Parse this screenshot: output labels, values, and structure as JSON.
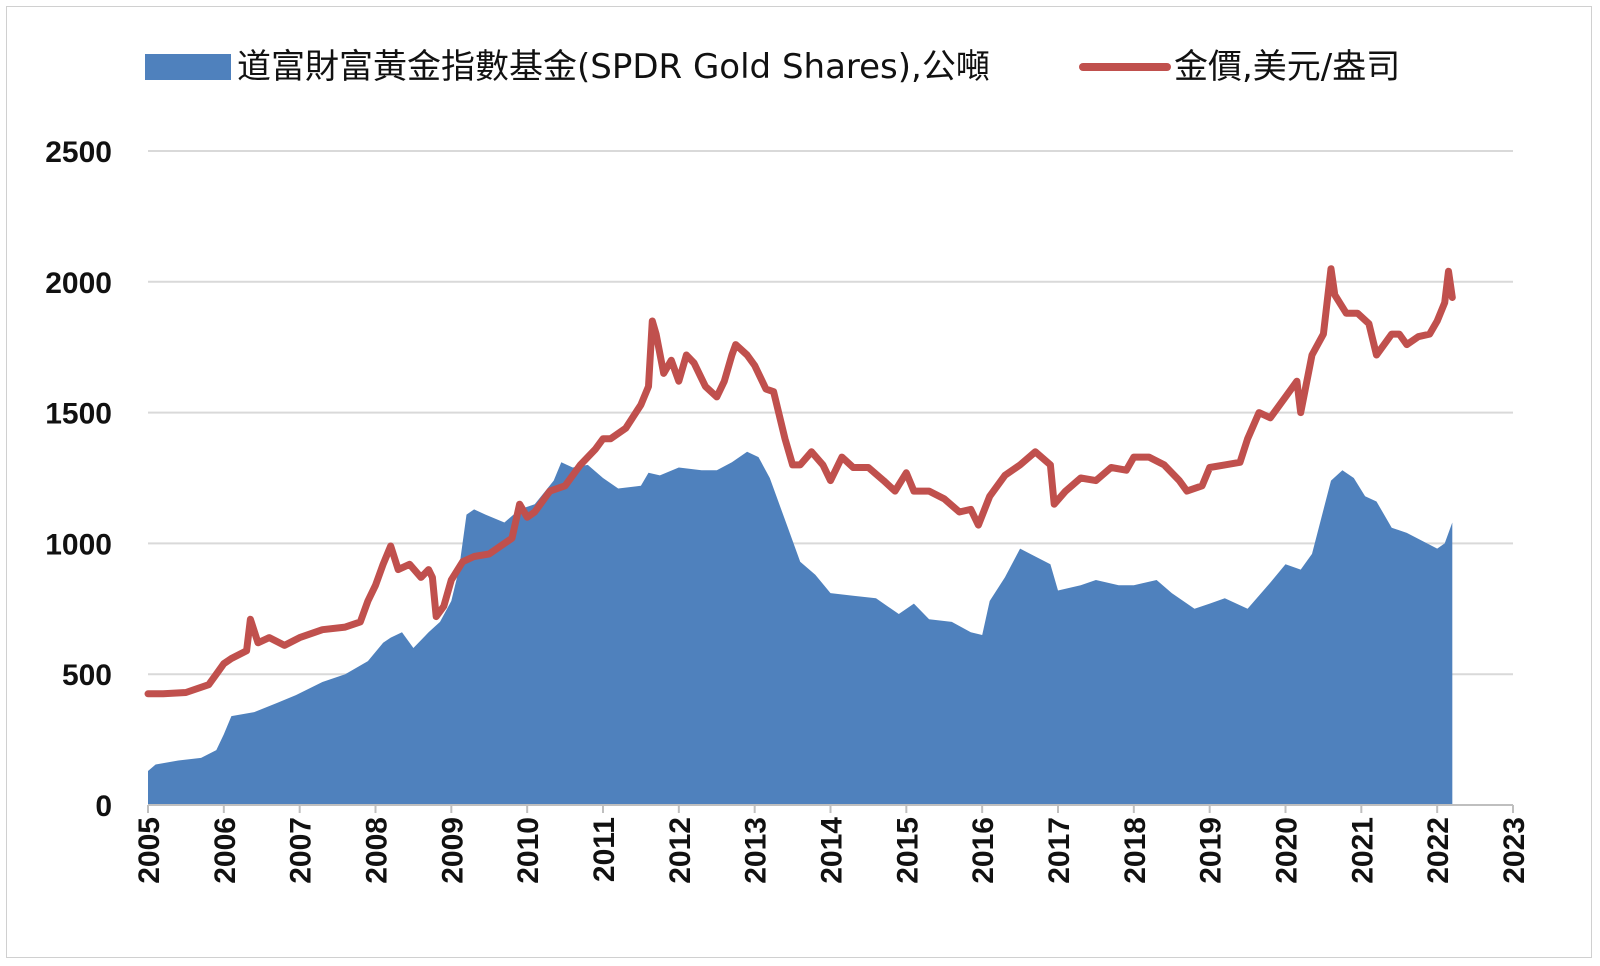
{
  "chart_data": {
    "type": "area",
    "title": "",
    "xlabel": "",
    "ylabel": "",
    "ylim": [
      0,
      2500
    ],
    "xlim": [
      2005,
      2023
    ],
    "yticks": [
      "0",
      "500",
      "1000",
      "1500",
      "2000",
      "2500"
    ],
    "xticks": [
      "2005",
      "2006",
      "2007",
      "2008",
      "2009",
      "2010",
      "2011",
      "2012",
      "2013",
      "2014",
      "2015",
      "2016",
      "2017",
      "2018",
      "2019",
      "2020",
      "2021",
      "2022",
      "2023"
    ],
    "grid": "horizontal",
    "legend_position": "top",
    "series": [
      {
        "name": "道富財富黃金指數基金(SPDR Gold Shares),公噸",
        "type": "area",
        "color": "#4f81bd",
        "x": [
          2005.0,
          2005.1,
          2005.4,
          2005.7,
          2005.9,
          2006.0,
          2006.1,
          2006.4,
          2006.7,
          2006.95,
          2007.3,
          2007.6,
          2007.9,
          2008.1,
          2008.2,
          2008.35,
          2008.5,
          2008.7,
          2008.85,
          2009.0,
          2009.1,
          2009.2,
          2009.3,
          2009.45,
          2009.7,
          2009.9,
          2010.1,
          2010.35,
          2010.45,
          2010.6,
          2010.8,
          2011.0,
          2011.2,
          2011.5,
          2011.6,
          2011.75,
          2012.0,
          2012.3,
          2012.5,
          2012.7,
          2012.9,
          2013.05,
          2013.2,
          2013.45,
          2013.6,
          2013.8,
          2014.0,
          2014.3,
          2014.6,
          2014.9,
          2015.1,
          2015.3,
          2015.6,
          2015.85,
          2016.0,
          2016.1,
          2016.3,
          2016.5,
          2016.7,
          2016.9,
          2017.0,
          2017.3,
          2017.5,
          2017.8,
          2018.0,
          2018.3,
          2018.5,
          2018.8,
          2019.0,
          2019.2,
          2019.5,
          2019.8,
          2020.0,
          2020.2,
          2020.35,
          2020.6,
          2020.75,
          2020.9,
          2021.05,
          2021.2,
          2021.4,
          2021.6,
          2021.8,
          2022.0,
          2022.1,
          2022.2
        ],
        "values": [
          130,
          155,
          170,
          180,
          210,
          270,
          340,
          355,
          390,
          420,
          470,
          500,
          550,
          620,
          640,
          660,
          600,
          660,
          700,
          780,
          900,
          1110,
          1130,
          1110,
          1080,
          1130,
          1150,
          1240,
          1310,
          1290,
          1300,
          1250,
          1210,
          1220,
          1270,
          1260,
          1290,
          1280,
          1280,
          1310,
          1350,
          1330,
          1250,
          1050,
          930,
          880,
          810,
          800,
          790,
          730,
          770,
          710,
          700,
          660,
          650,
          780,
          870,
          980,
          950,
          920,
          820,
          840,
          860,
          840,
          840,
          860,
          810,
          750,
          770,
          790,
          750,
          850,
          920,
          900,
          960,
          1240,
          1280,
          1250,
          1180,
          1160,
          1060,
          1040,
          1010,
          980,
          1000,
          1080
        ]
      },
      {
        "name": "金價,美元/盎司",
        "type": "line",
        "color": "#c0504d",
        "x": [
          2005.0,
          2005.2,
          2005.5,
          2005.8,
          2005.9,
          2006.0,
          2006.1,
          2006.3,
          2006.35,
          2006.45,
          2006.6,
          2006.8,
          2007.0,
          2007.3,
          2007.6,
          2007.8,
          2007.9,
          2008.0,
          2008.1,
          2008.2,
          2008.3,
          2008.45,
          2008.6,
          2008.7,
          2008.75,
          2008.8,
          2008.9,
          2009.0,
          2009.15,
          2009.3,
          2009.5,
          2009.8,
          2009.9,
          2010.0,
          2010.1,
          2010.3,
          2010.5,
          2010.7,
          2010.9,
          2011.0,
          2011.1,
          2011.3,
          2011.5,
          2011.6,
          2011.65,
          2011.7,
          2011.8,
          2011.9,
          2012.0,
          2012.1,
          2012.2,
          2012.35,
          2012.5,
          2012.6,
          2012.7,
          2012.75,
          2012.9,
          2013.0,
          2013.15,
          2013.25,
          2013.4,
          2013.5,
          2013.6,
          2013.75,
          2013.9,
          2014.0,
          2014.15,
          2014.3,
          2014.5,
          2014.7,
          2014.85,
          2015.0,
          2015.1,
          2015.3,
          2015.5,
          2015.7,
          2015.85,
          2015.95,
          2016.1,
          2016.3,
          2016.5,
          2016.7,
          2016.9,
          2016.95,
          2017.1,
          2017.3,
          2017.5,
          2017.7,
          2017.9,
          2018.0,
          2018.2,
          2018.4,
          2018.6,
          2018.7,
          2018.9,
          2019.0,
          2019.2,
          2019.4,
          2019.5,
          2019.65,
          2019.8,
          2020.0,
          2020.15,
          2020.2,
          2020.35,
          2020.5,
          2020.6,
          2020.65,
          2020.8,
          2020.95,
          2021.1,
          2021.2,
          2021.3,
          2021.4,
          2021.5,
          2021.6,
          2021.75,
          2021.9,
          2022.0,
          2022.1,
          2022.15,
          2022.2
        ],
        "values": [
          425,
          425,
          430,
          460,
          500,
          540,
          560,
          590,
          710,
          620,
          640,
          610,
          640,
          670,
          680,
          700,
          780,
          840,
          920,
          990,
          900,
          920,
          870,
          900,
          870,
          720,
          760,
          860,
          930,
          950,
          960,
          1020,
          1150,
          1100,
          1120,
          1200,
          1220,
          1300,
          1360,
          1400,
          1400,
          1440,
          1530,
          1600,
          1850,
          1800,
          1650,
          1700,
          1620,
          1720,
          1690,
          1600,
          1560,
          1620,
          1720,
          1760,
          1720,
          1680,
          1590,
          1580,
          1400,
          1300,
          1300,
          1350,
          1300,
          1240,
          1330,
          1290,
          1290,
          1240,
          1200,
          1270,
          1200,
          1200,
          1170,
          1120,
          1130,
          1070,
          1180,
          1260,
          1300,
          1350,
          1300,
          1150,
          1200,
          1250,
          1240,
          1290,
          1280,
          1330,
          1330,
          1300,
          1240,
          1200,
          1220,
          1290,
          1300,
          1310,
          1400,
          1500,
          1480,
          1560,
          1620,
          1500,
          1720,
          1800,
          2050,
          1950,
          1880,
          1880,
          1840,
          1720,
          1760,
          1800,
          1800,
          1760,
          1790,
          1800,
          1850,
          1920,
          2040,
          1940
        ]
      }
    ]
  }
}
